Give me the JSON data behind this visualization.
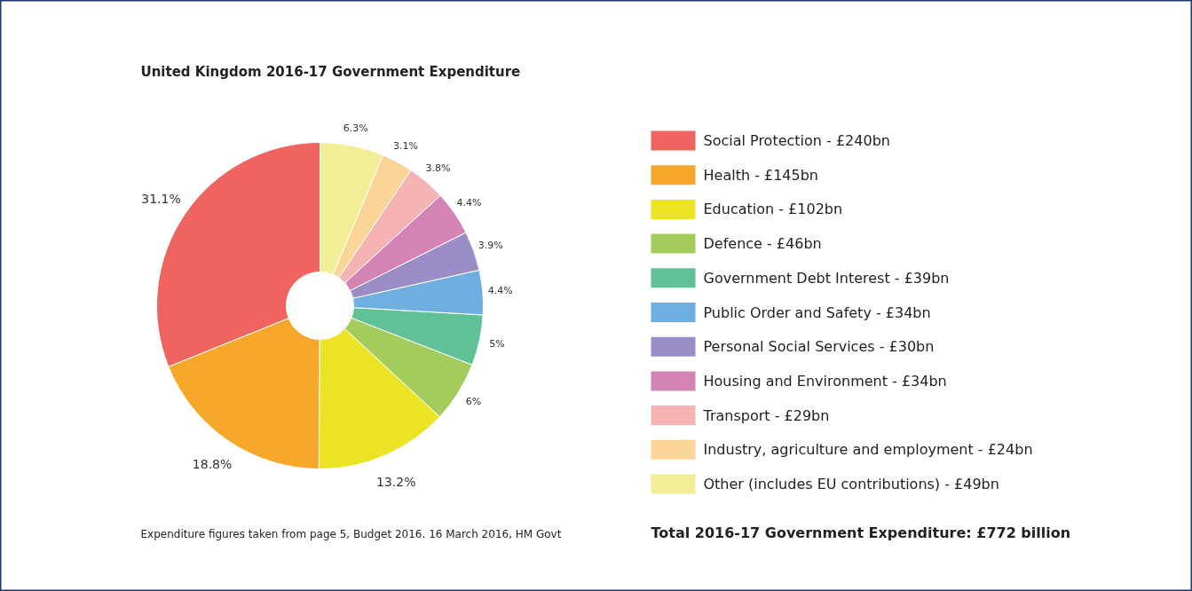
{
  "chart_data": {
    "type": "donut",
    "title": "United Kingdom 2016-17 Government Expenditure",
    "categories": [
      "Social Protection - £240bn",
      "Health - £145bn",
      "Education - £102bn",
      "Defence - £46bn",
      "Government Debt Interest - £39bn",
      "Public Order and Safety - £34bn",
      "Personal Social Services - £30bn",
      "Housing and Environment - £34bn",
      "Transport - £29bn",
      "Industry, agriculture and employment - £24bn",
      "Other (includes EU contributions) - £49bn"
    ],
    "values": [
      31.1,
      18.8,
      13.2,
      6,
      5,
      4.4,
      3.9,
      4.4,
      3.8,
      3.1,
      6.3
    ],
    "value_labels": [
      "31.1%",
      "18.8%",
      "13.2%",
      "6%",
      "5%",
      "4.4%",
      "3.9%",
      "4.4%",
      "3.8%",
      "3.1%",
      "6.3%"
    ],
    "colors": [
      "#ef6461",
      "#f7a82b",
      "#ebe324",
      "#a3cc5c",
      "#5fc195",
      "#6faee0",
      "#9b8ec6",
      "#d384b5",
      "#f6b3b3",
      "#fbd497",
      "#f1ee96"
    ],
    "legend": "right",
    "annotations": [
      "Expenditure figures taken from page 5, Budget 2016. 16 March 2016, HM Govt",
      "Total 2016-17 Government Expenditure: £772 billion"
    ]
  }
}
